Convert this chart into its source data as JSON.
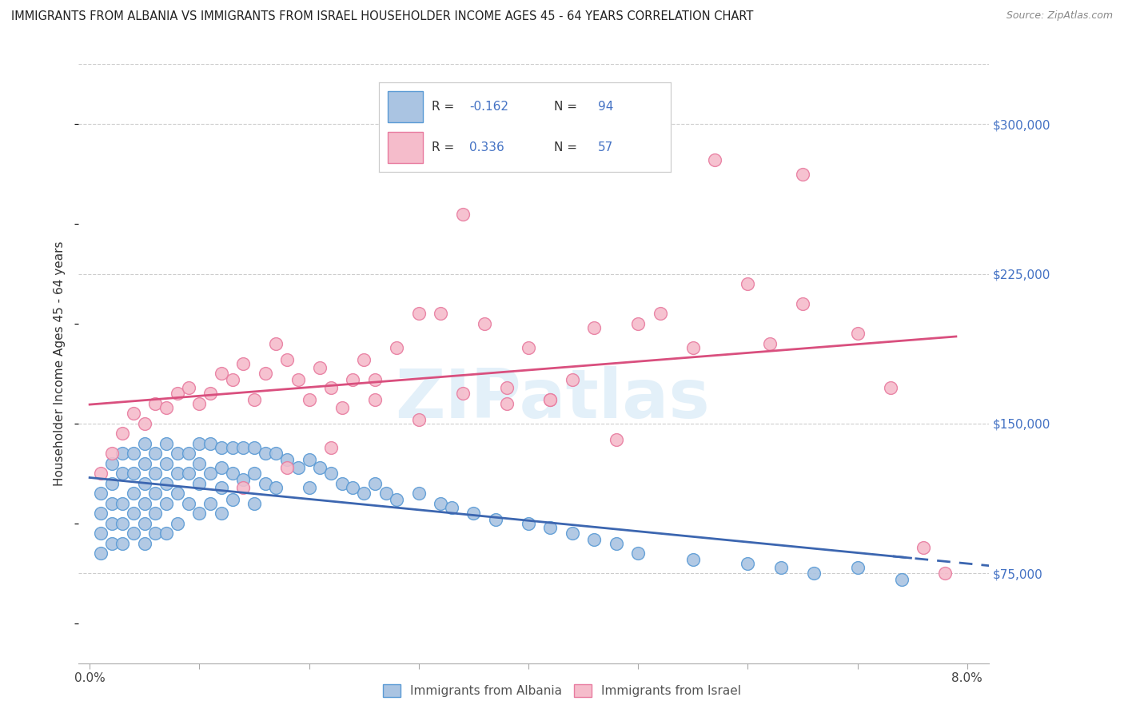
{
  "title": "IMMIGRANTS FROM ALBANIA VS IMMIGRANTS FROM ISRAEL HOUSEHOLDER INCOME AGES 45 - 64 YEARS CORRELATION CHART",
  "source": "Source: ZipAtlas.com",
  "ylabel": "Householder Income Ages 45 - 64 years",
  "xlim": [
    -0.001,
    0.082
  ],
  "ylim": [
    30000,
    330000
  ],
  "xticks": [
    0.0,
    0.01,
    0.02,
    0.03,
    0.04,
    0.05,
    0.06,
    0.07,
    0.08
  ],
  "xticklabels": [
    "0.0%",
    "",
    "",
    "",
    "",
    "",
    "",
    "",
    "8.0%"
  ],
  "ytick_positions": [
    75000,
    150000,
    225000,
    300000
  ],
  "ytick_labels": [
    "$75,000",
    "$150,000",
    "$225,000",
    "$300,000"
  ],
  "albania_color": "#aac4e2",
  "albania_edge_color": "#5b9bd5",
  "israel_color": "#f5bccb",
  "israel_edge_color": "#e87ca0",
  "albania_R": -0.162,
  "albania_N": 94,
  "israel_R": 0.336,
  "israel_N": 57,
  "albania_line_color": "#3c66b0",
  "israel_line_color": "#d94f7e",
  "tick_color": "#4472c4",
  "legend_label_albania": "Immigrants from Albania",
  "legend_label_israel": "Immigrants from Israel",
  "watermark_text": "ZIPatlas",
  "albania_x": [
    0.001,
    0.001,
    0.001,
    0.001,
    0.002,
    0.002,
    0.002,
    0.002,
    0.002,
    0.003,
    0.003,
    0.003,
    0.003,
    0.003,
    0.004,
    0.004,
    0.004,
    0.004,
    0.004,
    0.005,
    0.005,
    0.005,
    0.005,
    0.005,
    0.005,
    0.006,
    0.006,
    0.006,
    0.006,
    0.006,
    0.007,
    0.007,
    0.007,
    0.007,
    0.007,
    0.008,
    0.008,
    0.008,
    0.008,
    0.009,
    0.009,
    0.009,
    0.01,
    0.01,
    0.01,
    0.01,
    0.011,
    0.011,
    0.011,
    0.012,
    0.012,
    0.012,
    0.012,
    0.013,
    0.013,
    0.013,
    0.014,
    0.014,
    0.015,
    0.015,
    0.015,
    0.016,
    0.016,
    0.017,
    0.017,
    0.018,
    0.019,
    0.02,
    0.02,
    0.021,
    0.022,
    0.023,
    0.024,
    0.025,
    0.026,
    0.027,
    0.028,
    0.03,
    0.032,
    0.033,
    0.035,
    0.037,
    0.04,
    0.042,
    0.044,
    0.046,
    0.048,
    0.05,
    0.055,
    0.06,
    0.063,
    0.066,
    0.07,
    0.074
  ],
  "albania_y": [
    115000,
    105000,
    95000,
    85000,
    130000,
    120000,
    110000,
    100000,
    90000,
    135000,
    125000,
    110000,
    100000,
    90000,
    135000,
    125000,
    115000,
    105000,
    95000,
    140000,
    130000,
    120000,
    110000,
    100000,
    90000,
    135000,
    125000,
    115000,
    105000,
    95000,
    140000,
    130000,
    120000,
    110000,
    95000,
    135000,
    125000,
    115000,
    100000,
    135000,
    125000,
    110000,
    140000,
    130000,
    120000,
    105000,
    140000,
    125000,
    110000,
    138000,
    128000,
    118000,
    105000,
    138000,
    125000,
    112000,
    138000,
    122000,
    138000,
    125000,
    110000,
    135000,
    120000,
    135000,
    118000,
    132000,
    128000,
    132000,
    118000,
    128000,
    125000,
    120000,
    118000,
    115000,
    120000,
    115000,
    112000,
    115000,
    110000,
    108000,
    105000,
    102000,
    100000,
    98000,
    95000,
    92000,
    90000,
    85000,
    82000,
    80000,
    78000,
    75000,
    78000,
    72000
  ],
  "israel_x": [
    0.001,
    0.002,
    0.003,
    0.004,
    0.005,
    0.006,
    0.007,
    0.008,
    0.009,
    0.01,
    0.011,
    0.012,
    0.013,
    0.014,
    0.015,
    0.016,
    0.017,
    0.018,
    0.019,
    0.02,
    0.021,
    0.022,
    0.023,
    0.024,
    0.025,
    0.026,
    0.028,
    0.03,
    0.032,
    0.034,
    0.036,
    0.038,
    0.04,
    0.042,
    0.044,
    0.046,
    0.05,
    0.055,
    0.06,
    0.065,
    0.014,
    0.018,
    0.022,
    0.026,
    0.03,
    0.034,
    0.038,
    0.042,
    0.048,
    0.052,
    0.057,
    0.062,
    0.065,
    0.07,
    0.073,
    0.076,
    0.078
  ],
  "israel_y": [
    125000,
    135000,
    145000,
    155000,
    150000,
    160000,
    158000,
    165000,
    168000,
    160000,
    165000,
    175000,
    172000,
    180000,
    162000,
    175000,
    190000,
    182000,
    172000,
    162000,
    178000,
    168000,
    158000,
    172000,
    182000,
    172000,
    188000,
    205000,
    205000,
    255000,
    200000,
    168000,
    188000,
    162000,
    172000,
    198000,
    200000,
    188000,
    220000,
    210000,
    118000,
    128000,
    138000,
    162000,
    152000,
    165000,
    160000,
    162000,
    142000,
    205000,
    282000,
    190000,
    275000,
    195000,
    168000,
    88000,
    75000
  ]
}
